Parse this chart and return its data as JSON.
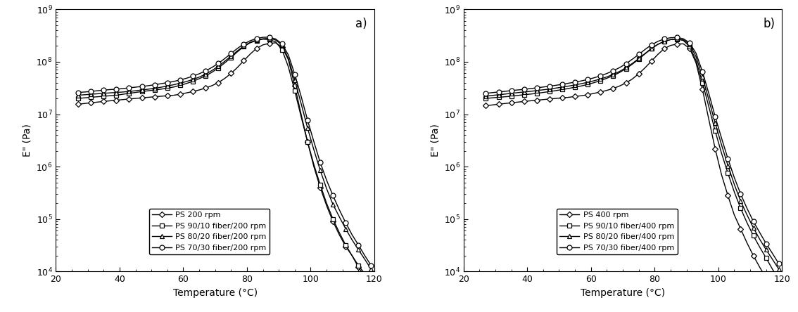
{
  "panel_a": {
    "label": "a)",
    "series": [
      {
        "name": "PS 200 rpm",
        "marker": "D",
        "markersize": 4.5,
        "temp": [
          27,
          29,
          31,
          33,
          35,
          37,
          39,
          41,
          43,
          45,
          47,
          49,
          51,
          53,
          55,
          57,
          59,
          61,
          63,
          65,
          67,
          69,
          71,
          73,
          75,
          77,
          79,
          81,
          83,
          85,
          87,
          89,
          91,
          93,
          95,
          97,
          99,
          101,
          103,
          105,
          107,
          109,
          111,
          113,
          115,
          117,
          119
        ],
        "E2": [
          15500000.0,
          16000000.0,
          16500000.0,
          17000000.0,
          17500000.0,
          18000000.0,
          18500000.0,
          19000000.0,
          19500000.0,
          20000000.0,
          20500000.0,
          21000000.0,
          21500000.0,
          22000000.0,
          22500000.0,
          23000000.0,
          24000000.0,
          25500000.0,
          27000000.0,
          29000000.0,
          31500000.0,
          35000000.0,
          40000000.0,
          48000000.0,
          60000000.0,
          78000000.0,
          105000000.0,
          140000000.0,
          180000000.0,
          210000000.0,
          225000000.0,
          230000000.0,
          190000000.0,
          110000000.0,
          35000000.0,
          10000000.0,
          3000000.0,
          1000000.0,
          400000.0,
          180000.0,
          90000.0,
          50000.0,
          30000.0,
          20000.0,
          12000.0,
          8000.0,
          5000.0
        ]
      },
      {
        "name": "PS 90/10 fiber/200 rpm",
        "marker": "s",
        "markersize": 4.5,
        "temp": [
          27,
          29,
          31,
          33,
          35,
          37,
          39,
          41,
          43,
          45,
          47,
          49,
          51,
          53,
          55,
          57,
          59,
          61,
          63,
          65,
          67,
          69,
          71,
          73,
          75,
          77,
          79,
          81,
          83,
          85,
          87,
          89,
          91,
          93,
          95,
          97,
          99,
          101,
          103,
          105,
          107,
          109,
          111,
          113,
          115,
          117,
          119
        ],
        "E2": [
          20000000.0,
          20500000.0,
          21000000.0,
          21500000.0,
          22000000.0,
          22500000.0,
          23000000.0,
          24000000.0,
          25000000.0,
          26000000.0,
          27000000.0,
          28000000.0,
          29000000.0,
          30000000.0,
          31500000.0,
          33000000.0,
          35500000.0,
          38500000.0,
          42500000.0,
          47500000.0,
          54000000.0,
          63000000.0,
          76000000.0,
          95000000.0,
          120000000.0,
          155000000.0,
          195000000.0,
          230000000.0,
          255000000.0,
          270000000.0,
          265000000.0,
          240000000.0,
          170000000.0,
          80000000.0,
          28000000.0,
          9000000.0,
          3000000.0,
          1100000.0,
          450000.0,
          200000.0,
          100000.0,
          55000.0,
          32000.0,
          20000.0,
          13000.0,
          9000.0,
          6000.0
        ]
      },
      {
        "name": "PS 80/20 fiber/200 rpm",
        "marker": "^",
        "markersize": 5,
        "temp": [
          27,
          29,
          31,
          33,
          35,
          37,
          39,
          41,
          43,
          45,
          47,
          49,
          51,
          53,
          55,
          57,
          59,
          61,
          63,
          65,
          67,
          69,
          71,
          73,
          75,
          77,
          79,
          81,
          83,
          85,
          87,
          89,
          91,
          93,
          95,
          97,
          99,
          101,
          103,
          105,
          107,
          109,
          111,
          113,
          115,
          117,
          119
        ],
        "E2": [
          23000000.0,
          23500000.0,
          24000000.0,
          24500000.0,
          25000000.0,
          25500000.0,
          26000000.0,
          26500000.0,
          27200000.0,
          28000000.0,
          29000000.0,
          30000000.0,
          31200000.0,
          32700000.0,
          34500000.0,
          36500000.0,
          39000000.0,
          42000000.0,
          46000000.0,
          51000000.0,
          58000000.0,
          68000000.0,
          82000000.0,
          102000000.0,
          128000000.0,
          162000000.0,
          200000000.0,
          235000000.0,
          260000000.0,
          275000000.0,
          280000000.0,
          260000000.0,
          210000000.0,
          115000000.0,
          45000000.0,
          16000000.0,
          5500000.0,
          2100000.0,
          850000.0,
          380000.0,
          190000.0,
          110000.0,
          65000.0,
          40000.0,
          26000.0,
          17000.0,
          11000.0
        ]
      },
      {
        "name": "PS 70/30 fiber/200 rpm",
        "marker": "o",
        "markersize": 5,
        "temp": [
          27,
          29,
          31,
          33,
          35,
          37,
          39,
          41,
          43,
          45,
          47,
          49,
          51,
          53,
          55,
          57,
          59,
          61,
          63,
          65,
          67,
          69,
          71,
          73,
          75,
          77,
          79,
          81,
          83,
          85,
          87,
          89,
          91,
          93,
          95,
          97,
          99,
          101,
          103,
          105,
          107,
          109,
          111,
          113,
          115,
          117,
          119
        ],
        "E2": [
          26000000.0,
          26500000.0,
          27200000.0,
          28000000.0,
          28700000.0,
          29500000.0,
          30000000.0,
          30800000.0,
          31800000.0,
          32800000.0,
          33800000.0,
          35000000.0,
          36500000.0,
          38200000.0,
          40000000.0,
          42200000.0,
          45000000.0,
          48500000.0,
          53000000.0,
          59000000.0,
          67000000.0,
          78000000.0,
          93000000.0,
          115000000.0,
          144000000.0,
          180000000.0,
          218000000.0,
          252000000.0,
          278000000.0,
          293000000.0,
          295000000.0,
          272000000.0,
          220000000.0,
          135000000.0,
          58000000.0,
          22000000.0,
          7800000.0,
          3000000.0,
          1200000.0,
          550000.0,
          280000.0,
          150000.0,
          85000.0,
          50000.0,
          32000.0,
          20000.0,
          13000.0
        ]
      }
    ]
  },
  "panel_b": {
    "label": "b)",
    "series": [
      {
        "name": "PS 400 rpm",
        "marker": "D",
        "markersize": 4.5,
        "temp": [
          27,
          29,
          31,
          33,
          35,
          37,
          39,
          41,
          43,
          45,
          47,
          49,
          51,
          53,
          55,
          57,
          59,
          61,
          63,
          65,
          67,
          69,
          71,
          73,
          75,
          77,
          79,
          81,
          83,
          85,
          87,
          89,
          91,
          93,
          95,
          97,
          99,
          101,
          103,
          105,
          107,
          109,
          111,
          113,
          115,
          117,
          119
        ],
        "E2": [
          14500000.0,
          15000000.0,
          15500000.0,
          16000000.0,
          16500000.0,
          17000000.0,
          17500000.0,
          18000000.0,
          18500000.0,
          19000000.0,
          19500000.0,
          20000000.0,
          20500000.0,
          21000000.0,
          21800000.0,
          22500000.0,
          23500000.0,
          25000000.0,
          26500000.0,
          28500000.0,
          31000000.0,
          34500000.0,
          39500000.0,
          47000000.0,
          59000000.0,
          77000000.0,
          103000000.0,
          138000000.0,
          178000000.0,
          205000000.0,
          218000000.0,
          220000000.0,
          180000000.0,
          95000000.0,
          30000000.0,
          8000000.0,
          2200000.0,
          700000.0,
          280000.0,
          120000.0,
          65000.0,
          35000.0,
          20000.0,
          12000.0,
          7500.0,
          4500.0,
          2800.0
        ]
      },
      {
        "name": "PS 90/10 fiber/400 rpm",
        "marker": "s",
        "markersize": 4.5,
        "temp": [
          27,
          29,
          31,
          33,
          35,
          37,
          39,
          41,
          43,
          45,
          47,
          49,
          51,
          53,
          55,
          57,
          59,
          61,
          63,
          65,
          67,
          69,
          71,
          73,
          75,
          77,
          79,
          81,
          83,
          85,
          87,
          89,
          91,
          93,
          95,
          97,
          99,
          101,
          103,
          105,
          107,
          109,
          111,
          113,
          115,
          117,
          119
        ],
        "E2": [
          20000000.0,
          20500000.0,
          21000000.0,
          21500000.0,
          22000000.0,
          22800000.0,
          23500000.0,
          24200000.0,
          25000000.0,
          26000000.0,
          27000000.0,
          28200000.0,
          29500000.0,
          31000000.0,
          32700000.0,
          34600000.0,
          37000000.0,
          40000000.0,
          43800000.0,
          48500000.0,
          54500000.0,
          62500000.0,
          74000000.0,
          90000000.0,
          112000000.0,
          142000000.0,
          178000000.0,
          215000000.0,
          245000000.0,
          265000000.0,
          270000000.0,
          255000000.0,
          195000000.0,
          105000000.0,
          40000000.0,
          14000000.0,
          4800000.0,
          1800000.0,
          750000.0,
          330000.0,
          160000.0,
          85000.0,
          48000.0,
          29000.0,
          18000.0,
          11000.0,
          7000.0
        ]
      },
      {
        "name": "PS 80/20 fiber/400 rpm",
        "marker": "^",
        "markersize": 5,
        "temp": [
          27,
          29,
          31,
          33,
          35,
          37,
          39,
          41,
          43,
          45,
          47,
          49,
          51,
          53,
          55,
          57,
          59,
          61,
          63,
          65,
          67,
          69,
          71,
          73,
          75,
          77,
          79,
          81,
          83,
          85,
          87,
          89,
          91,
          93,
          95,
          97,
          99,
          101,
          103,
          105,
          107,
          109,
          111,
          113,
          115,
          117,
          119
        ],
        "E2": [
          22000000.0,
          22800000.0,
          23500000.0,
          24200000.0,
          25000000.0,
          25800000.0,
          26500000.0,
          27300000.0,
          28200000.0,
          29200000.0,
          30200000.0,
          31500000.0,
          32800000.0,
          34400000.0,
          36200000.0,
          38200000.0,
          40600000.0,
          43500000.0,
          47000000.0,
          51500000.0,
          57500000.0,
          65500000.0,
          77000000.0,
          93000000.0,
          115000000.0,
          144000000.0,
          180000000.0,
          215000000.0,
          245000000.0,
          265000000.0,
          272000000.0,
          262000000.0,
          215000000.0,
          125000000.0,
          52000000.0,
          19000000.0,
          6800000.0,
          2600000.0,
          1050000.0,
          460000.0,
          220000.0,
          120000.0,
          68000.0,
          41000.0,
          26000.0,
          17000.0,
          11000.0
        ]
      },
      {
        "name": "PS 70/30 fiber/400 rpm",
        "marker": "o",
        "markersize": 5,
        "temp": [
          27,
          29,
          31,
          33,
          35,
          37,
          39,
          41,
          43,
          45,
          47,
          49,
          51,
          53,
          55,
          57,
          59,
          61,
          63,
          65,
          67,
          69,
          71,
          73,
          75,
          77,
          79,
          81,
          83,
          85,
          87,
          89,
          91,
          93,
          95,
          97,
          99,
          101,
          103,
          105,
          107,
          109,
          111,
          113,
          115,
          117,
          119
        ],
        "E2": [
          25000000.0,
          25800000.0,
          26500000.0,
          27300000.0,
          28200000.0,
          29000000.0,
          29800000.0,
          30800000.0,
          31800000.0,
          33000000.0,
          34200000.0,
          35600000.0,
          37200000.0,
          39000000.0,
          41000000.0,
          43200000.0,
          46000000.0,
          49500000.0,
          54000000.0,
          59800000.0,
          67500000.0,
          77500000.0,
          91500000.0,
          112000000.0,
          138000000.0,
          172000000.0,
          210000000.0,
          245000000.0,
          272000000.0,
          288000000.0,
          292000000.0,
          275000000.0,
          230000000.0,
          145000000.0,
          65000000.0,
          25000000.0,
          9000000.0,
          3500000.0,
          1420000.0,
          620000.0,
          300000.0,
          160000.0,
          90000.0,
          55000.0,
          34000.0,
          22000.0,
          14000.0
        ]
      }
    ]
  },
  "xlabel": "Temperature (°C)",
  "ylabel": "E\" (Pa)",
  "xlim": [
    20,
    120
  ],
  "ylim_log": [
    4,
    9
  ],
  "xticks": [
    20,
    40,
    60,
    80,
    100,
    120
  ],
  "background_color": "#ffffff",
  "line_color": "#000000",
  "linewidth": 1.0,
  "fontsize_label": 10,
  "fontsize_tick": 9,
  "fontsize_legend": 8,
  "fontsize_panel": 12,
  "markevery": 2
}
